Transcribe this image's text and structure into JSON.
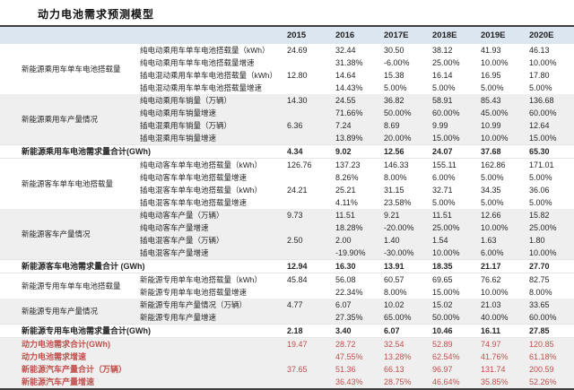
{
  "title": "动力电池需求预测模型",
  "colors": {
    "header_bg": "#dce6f1",
    "band_bg": "#efefef",
    "highlight_red": "#c0504d",
    "border_dark": "#404040"
  },
  "table": {
    "year_headers": [
      "2015",
      "2016",
      "2017E",
      "2018E",
      "2019E",
      "2020E"
    ],
    "rows": [
      {
        "group": "新能源乘用车单车电池搭载量",
        "group_span": 4,
        "label": "纯电动乘用车单车电池搭载量（kWh）",
        "values": [
          "24.69",
          "32.44",
          "30.50",
          "38.12",
          "41.93",
          "46.13"
        ],
        "band": "white",
        "style": "normal"
      },
      {
        "label": "纯电动乘用车单车电池搭载量增速",
        "values": [
          "",
          "31.38%",
          "-6.00%",
          "25.00%",
          "10.00%",
          "10.00%"
        ],
        "band": "white",
        "style": "normal"
      },
      {
        "label": "插电混动乘用车单车电池搭载量（kWh）",
        "values": [
          "12.80",
          "14.64",
          "15.38",
          "16.14",
          "16.95",
          "17.80"
        ],
        "band": "white",
        "style": "normal"
      },
      {
        "label": "插电混动乘用车单车电池搭载量增速",
        "values": [
          "",
          "14.43%",
          "5.00%",
          "5.00%",
          "5.00%",
          "5.00%"
        ],
        "band": "white",
        "style": "normal"
      },
      {
        "group": "新能源乘用车产量情况",
        "group_span": 4,
        "label": "纯电动乘用车销量（万辆）",
        "values": [
          "14.30",
          "24.55",
          "36.82",
          "58.91",
          "85.43",
          "136.68"
        ],
        "band": "gray",
        "style": "normal"
      },
      {
        "label": "纯电动乘用车销量增速",
        "values": [
          "",
          "71.66%",
          "50.00%",
          "60.00%",
          "45.00%",
          "60.00%"
        ],
        "band": "gray",
        "style": "normal"
      },
      {
        "label": "插电混乘用车销量（万辆）",
        "values": [
          "6.36",
          "7.24",
          "8.69",
          "9.99",
          "10.99",
          "12.64"
        ],
        "band": "gray",
        "style": "normal"
      },
      {
        "label": "插电混乘用车销量增速",
        "values": [
          "",
          "13.89%",
          "20.00%",
          "15.00%",
          "10.00%",
          "15.00%"
        ],
        "band": "gray",
        "style": "normal"
      },
      {
        "label": "新能源乘用车电池需求量合计(GWh)",
        "full": true,
        "values": [
          "4.34",
          "9.02",
          "12.56",
          "24.07",
          "37.68",
          "65.30"
        ],
        "band": "white",
        "style": "total"
      },
      {
        "group": "新能源客车单车电池搭载量",
        "group_span": 4,
        "label": "纯电动客车单车电池搭载量（kWh）",
        "values": [
          "126.76",
          "137.23",
          "146.33",
          "155.11",
          "162.86",
          "171.01"
        ],
        "band": "white",
        "style": "normal"
      },
      {
        "label": "纯电动客车单车电池搭载量增速",
        "values": [
          "",
          "8.26%",
          "8.00%",
          "6.00%",
          "5.00%",
          "5.00%"
        ],
        "band": "white",
        "style": "normal"
      },
      {
        "label": "插电混客车单车电池搭载量（kWh）",
        "values": [
          "24.21",
          "25.21",
          "31.15",
          "32.71",
          "34.35",
          "36.06"
        ],
        "band": "white",
        "style": "normal"
      },
      {
        "label": "插电混客车单车电池搭载量增速",
        "values": [
          "",
          "4.11%",
          "23.58%",
          "5.00%",
          "5.00%",
          "5.00%"
        ],
        "band": "white",
        "style": "normal"
      },
      {
        "group": "新能源客车产量情况",
        "group_span": 4,
        "label": "纯电动客车产量（万辆）",
        "values": [
          "9.73",
          "11.51",
          "9.21",
          "11.51",
          "12.66",
          "15.82"
        ],
        "band": "gray",
        "style": "normal"
      },
      {
        "label": "纯电动客车产量增速",
        "values": [
          "",
          "18.28%",
          "-20.00%",
          "25.00%",
          "10.00%",
          "25.00%"
        ],
        "band": "gray",
        "style": "normal"
      },
      {
        "label": "插电混客车产量（万辆）",
        "values": [
          "2.50",
          "2.00",
          "1.40",
          "1.54",
          "1.63",
          "1.80"
        ],
        "band": "gray",
        "style": "normal"
      },
      {
        "label": "插电混客车产量增速",
        "values": [
          "",
          "-19.90%",
          "-30.00%",
          "10.00%",
          "6.00%",
          "10.00%"
        ],
        "band": "gray",
        "style": "normal"
      },
      {
        "label": "新能源客车电池需求量合计 (GWh)",
        "full": true,
        "values": [
          "12.94",
          "16.30",
          "13.91",
          "18.35",
          "21.17",
          "27.70"
        ],
        "band": "white",
        "style": "total"
      },
      {
        "group": "新能源专用车单车电池搭载量",
        "group_span": 2,
        "label": "新能源专用单车电池搭载量（kWh）",
        "values": [
          "45.84",
          "56.08",
          "60.57",
          "69.65",
          "76.62",
          "82.75"
        ],
        "band": "white",
        "style": "normal"
      },
      {
        "label": "新能源专用单车电池搭载量增速",
        "values": [
          "",
          "22.34%",
          "8.00%",
          "15.00%",
          "10.00%",
          "8.00%"
        ],
        "band": "white",
        "style": "normal"
      },
      {
        "group": "新能源专用车产量情况",
        "group_span": 2,
        "label": "新能源专用车产量情况（万辆）",
        "values": [
          "4.77",
          "6.07",
          "10.02",
          "15.02",
          "21.03",
          "33.65"
        ],
        "band": "gray",
        "style": "normal"
      },
      {
        "label": "新能源专用车产量增速",
        "values": [
          "",
          "27.35%",
          "65.00%",
          "50.00%",
          "40.00%",
          "60.00%"
        ],
        "band": "gray",
        "style": "normal"
      },
      {
        "label": "新能源专用车电池需求量合计(GWh)",
        "full": true,
        "values": [
          "2.18",
          "3.40",
          "6.07",
          "10.46",
          "16.11",
          "27.85"
        ],
        "band": "white",
        "style": "total"
      },
      {
        "label": "动力电池需求合计(GWh)",
        "full": true,
        "values": [
          "19.47",
          "28.72",
          "32.54",
          "52.89",
          "74.97",
          "120.85"
        ],
        "band": "gray",
        "style": "red"
      },
      {
        "label": "动力电池需求增速",
        "full": true,
        "values": [
          "",
          "47.55%",
          "13.28%",
          "62.54%",
          "41.76%",
          "61.18%"
        ],
        "band": "gray",
        "style": "red"
      },
      {
        "label": "新能源汽车产量合计（万辆）",
        "full": true,
        "values": [
          "37.65",
          "51.36",
          "66.13",
          "96.97",
          "131.74",
          "200.59"
        ],
        "band": "gray",
        "style": "red"
      },
      {
        "label": "新能源汽车产量增速",
        "full": true,
        "values": [
          "",
          "36.43%",
          "28.75%",
          "46.64%",
          "35.85%",
          "52.26%"
        ],
        "band": "gray",
        "style": "red"
      }
    ]
  }
}
